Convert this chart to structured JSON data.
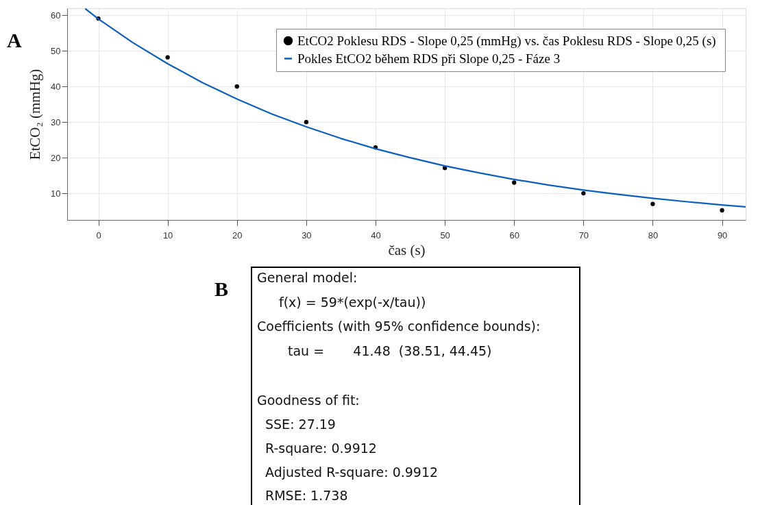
{
  "chart_data": {
    "type": "scatter",
    "xlabel": "čas (s)",
    "ylabel": "EtCO₂ (mmHg)",
    "xlim": [
      -4.5,
      93.4
    ],
    "ylim": [
      2.5,
      62
    ],
    "xticks": [
      0,
      10,
      20,
      30,
      40,
      50,
      60,
      70,
      80,
      90
    ],
    "yticks": [
      10,
      20,
      30,
      40,
      50,
      60
    ],
    "grid": true,
    "legend": "top right",
    "marker": "circle",
    "series": [
      {
        "name": "EtCO2 Poklesu RDS - Slope 0,25 (mmHg)  vs. čas Poklesu RDS - Slope 0,25 (s)",
        "color": "#000000",
        "x": [
          0,
          10,
          20,
          30,
          40,
          50,
          60,
          70,
          80,
          90
        ],
        "values": [
          59.1,
          48.2,
          40,
          30,
          22.9,
          17.1,
          13,
          10,
          7,
          5.2
        ]
      },
      {
        "name": "Pokles EtCO2 během RDS při Slope 0,25 - Fáze 3",
        "type": "line",
        "color": "#0a5fbf",
        "line_style": "solid",
        "marker": "none",
        "x": [
          -1.9,
          0,
          5,
          10,
          15,
          20,
          25,
          30,
          35,
          40,
          45,
          50,
          55,
          60,
          65,
          70,
          75,
          80,
          85,
          90,
          93.4
        ],
        "values": [
          61.9,
          59,
          52.3,
          46.4,
          41.1,
          36.5,
          32.3,
          28.7,
          25.4,
          22.5,
          20.0,
          17.7,
          15.7,
          13.9,
          12.3,
          10.9,
          9.7,
          8.6,
          7.6,
          6.7,
          6.2
        ]
      }
    ],
    "annotations": [
      "A",
      "B",
      "General model:",
      "f(x) = 59*(exp(-x/tau))",
      "Coefficients (with 95% confidence bounds):",
      "tau =       41.48  (38.51, 44.45)",
      "Goodness of fit:",
      "SSE: 27.19",
      "R-square: 0.9912",
      "Adjusted R-square: 0.9912",
      "RMSE: 1.738"
    ]
  }
}
